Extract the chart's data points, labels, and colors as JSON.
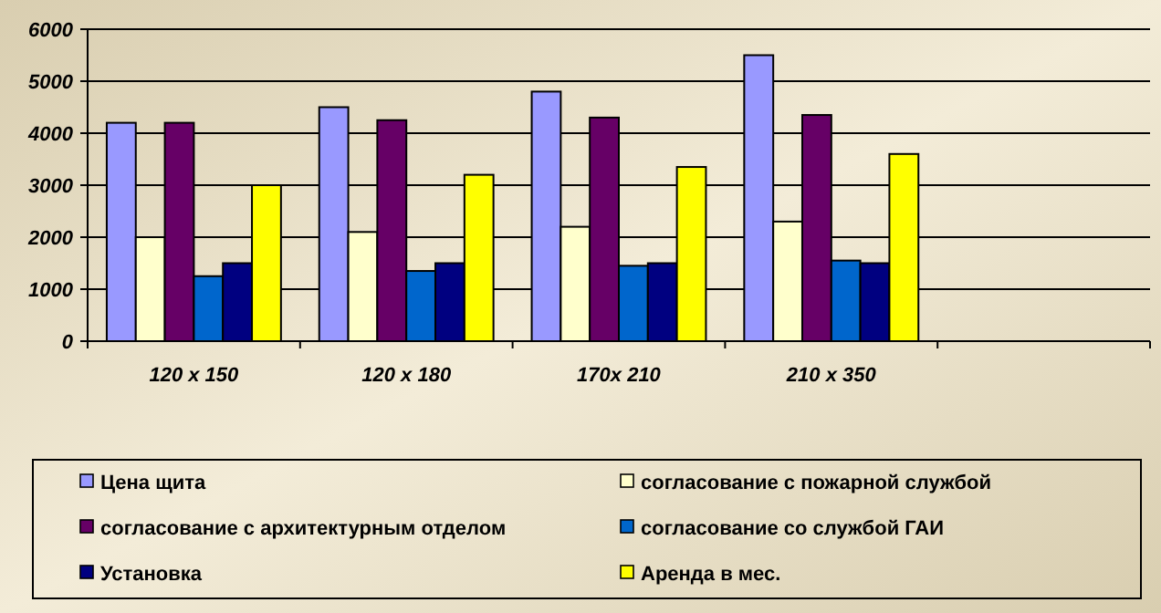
{
  "chart_data": {
    "type": "bar",
    "categories": [
      "120 x 150",
      "120 x 180",
      "170x 210",
      "210 x 350",
      null
    ],
    "series": [
      {
        "name": "Цена  щита",
        "color": "#9999ff",
        "values": [
          4200,
          4500,
          4800,
          5500,
          null
        ]
      },
      {
        "name": "согласование с пожарной службой",
        "color": "#ffffcc",
        "values": [
          2000,
          2100,
          2200,
          2300,
          null
        ]
      },
      {
        "name": "согласование с архитектурным отделом",
        "color": "#660066",
        "values": [
          4200,
          4250,
          4300,
          4350,
          null
        ]
      },
      {
        "name": "согласование со службой ГАИ",
        "color": "#0066cc",
        "values": [
          1250,
          1350,
          1450,
          1550,
          null
        ]
      },
      {
        "name": "Установка",
        "color": "#000080",
        "values": [
          1500,
          1500,
          1500,
          1500,
          null
        ]
      },
      {
        "name": "Аренда в мес.",
        "color": "#ffff00",
        "values": [
          3000,
          3200,
          3350,
          3600,
          null
        ]
      }
    ],
    "ylim": [
      0,
      6000
    ],
    "yticks": [
      0,
      1000,
      2000,
      3000,
      4000,
      5000,
      6000
    ],
    "grid": "y",
    "legend": "bottom"
  }
}
